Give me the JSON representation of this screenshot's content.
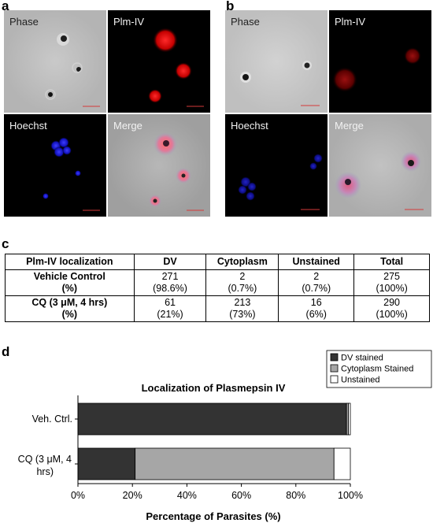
{
  "panels": {
    "a": {
      "letter": "a",
      "tiles": [
        {
          "label": "Phase",
          "style": "phase"
        },
        {
          "label": "Plm-IV",
          "style": "red"
        },
        {
          "label": "Hoechst",
          "style": "blue"
        },
        {
          "label": "Merge",
          "style": "merge"
        }
      ]
    },
    "b": {
      "letter": "b",
      "tiles": [
        {
          "label": "Phase",
          "style": "phase"
        },
        {
          "label": "Plm-IV",
          "style": "red"
        },
        {
          "label": "Hoechst",
          "style": "blue"
        },
        {
          "label": "Merge",
          "style": "merge"
        }
      ]
    },
    "c": {
      "letter": "c"
    },
    "d": {
      "letter": "d"
    }
  },
  "table": {
    "headers": [
      "Plm-IV localization",
      "DV",
      "Cytoplasm",
      "Unstained",
      "Total"
    ],
    "rows": [
      {
        "label_line1": "Vehicle Control",
        "label_line2": "(%)",
        "cells": [
          {
            "count": "271",
            "pct": "(98.6%)"
          },
          {
            "count": "2",
            "pct": "(0.7%)"
          },
          {
            "count": "2",
            "pct": "(0.7%)"
          },
          {
            "count": "275",
            "pct": "(100%)"
          }
        ]
      },
      {
        "label_line1": "CQ (3 μM, 4 hrs)",
        "label_line2": "(%)",
        "cells": [
          {
            "count": "61",
            "pct": "(21%)"
          },
          {
            "count": "213",
            "pct": "(73%)"
          },
          {
            "count": "16",
            "pct": "(6%)"
          },
          {
            "count": "290",
            "pct": "(100%)"
          }
        ]
      }
    ]
  },
  "chart_data": {
    "type": "bar",
    "orientation": "horizontal",
    "stacked": true,
    "title": "Localization of Plasmepsin IV",
    "xlabel": "Percentage of Parasites (%)",
    "ylabel": "",
    "xlim": [
      0,
      100
    ],
    "xticks": [
      "0%",
      "20%",
      "40%",
      "60%",
      "80%",
      "100%"
    ],
    "categories": [
      {
        "line1": "Veh. Ctrl.",
        "line2": ""
      },
      {
        "line1": "CQ (3 μM, 4",
        "line2": "hrs)"
      }
    ],
    "series": [
      {
        "name": "DV stained",
        "color": "#333333",
        "values": [
          98.6,
          21
        ]
      },
      {
        "name": "Cytoplasm Stained",
        "color": "#a6a6a6",
        "values": [
          0.7,
          73
        ]
      },
      {
        "name": "Unstained",
        "color": "#ffffff",
        "values": [
          0.7,
          6
        ]
      }
    ],
    "legend": "top-right",
    "grid": false
  }
}
